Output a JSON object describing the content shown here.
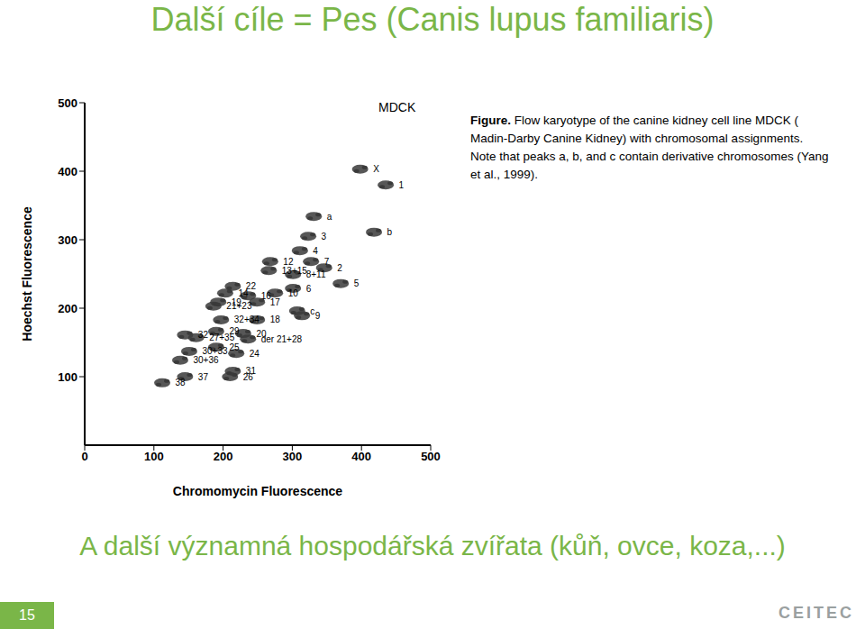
{
  "title": "Další cíle = Pes (Canis lupus familiaris)",
  "chart_data": {
    "type": "scatter",
    "x_label": "Chromomycin Fluorescence",
    "y_label": "Hoechst Fluorescence",
    "annotations": [
      "MDCK"
    ],
    "xlim": [
      0,
      500
    ],
    "ylim": [
      0,
      500
    ],
    "xticks": [
      0,
      100,
      200,
      300,
      400,
      500
    ],
    "yticks": [
      100,
      200,
      300,
      400,
      500
    ],
    "color": "#3a3a3a",
    "marker": "blob",
    "points": [
      {
        "x": 398,
        "y": 403,
        "label": "X"
      },
      {
        "x": 435,
        "y": 380,
        "label": "1"
      },
      {
        "x": 331,
        "y": 334,
        "label": "a"
      },
      {
        "x": 418,
        "y": 311,
        "label": "b"
      },
      {
        "x": 323,
        "y": 305,
        "label": "3"
      },
      {
        "x": 311,
        "y": 284,
        "label": "4"
      },
      {
        "x": 327,
        "y": 268,
        "label": "7"
      },
      {
        "x": 346,
        "y": 259,
        "label": "2"
      },
      {
        "x": 268,
        "y": 268,
        "label": "12"
      },
      {
        "x": 301,
        "y": 249,
        "label": "8+11"
      },
      {
        "x": 301,
        "y": 229,
        "label": "6"
      },
      {
        "x": 370,
        "y": 236,
        "label": "5"
      },
      {
        "x": 266,
        "y": 255,
        "label": "13+15"
      },
      {
        "x": 214,
        "y": 232,
        "label": "22"
      },
      {
        "x": 203,
        "y": 222,
        "label": "14"
      },
      {
        "x": 193,
        "y": 209,
        "label": "19"
      },
      {
        "x": 186,
        "y": 203,
        "label": "21+23"
      },
      {
        "x": 236,
        "y": 218,
        "label": "16"
      },
      {
        "x": 249,
        "y": 209,
        "label": "17"
      },
      {
        "x": 275,
        "y": 222,
        "label": "10"
      },
      {
        "x": 249,
        "y": 183,
        "label": "18"
      },
      {
        "x": 314,
        "y": 189,
        "label": "9"
      },
      {
        "x": 307,
        "y": 196,
        "label": "c"
      },
      {
        "x": 197,
        "y": 183,
        "label": "32+34"
      },
      {
        "x": 161,
        "y": 157,
        "label": "27+35"
      },
      {
        "x": 145,
        "y": 161,
        "label": "32"
      },
      {
        "x": 190,
        "y": 166,
        "label": "29"
      },
      {
        "x": 190,
        "y": 143,
        "label": "25"
      },
      {
        "x": 229,
        "y": 163,
        "label": "20"
      },
      {
        "x": 236,
        "y": 155,
        "label": "der 21+28"
      },
      {
        "x": 151,
        "y": 137,
        "label": "30+33"
      },
      {
        "x": 138,
        "y": 124,
        "label": "30+36"
      },
      {
        "x": 219,
        "y": 134,
        "label": "24"
      },
      {
        "x": 214,
        "y": 108,
        "label": "31"
      },
      {
        "x": 210,
        "y": 100,
        "label": "26"
      },
      {
        "x": 145,
        "y": 100,
        "label": "37"
      },
      {
        "x": 112,
        "y": 91,
        "label": "38"
      }
    ]
  },
  "caption": {
    "label": "Figure.",
    "text": "Flow karyotype of the canine kidney cell line MDCK ( Madin-Darby Canine Kidney) with chromosomal assignments. Note that peaks a, b, and c contain derivative chromosomes (Yang et al., 1999)."
  },
  "footer": {
    "text": "A další významná hospodářská zvířata (kůň, ovce, koza,...)",
    "page": "15",
    "logo": "CEITEC"
  }
}
